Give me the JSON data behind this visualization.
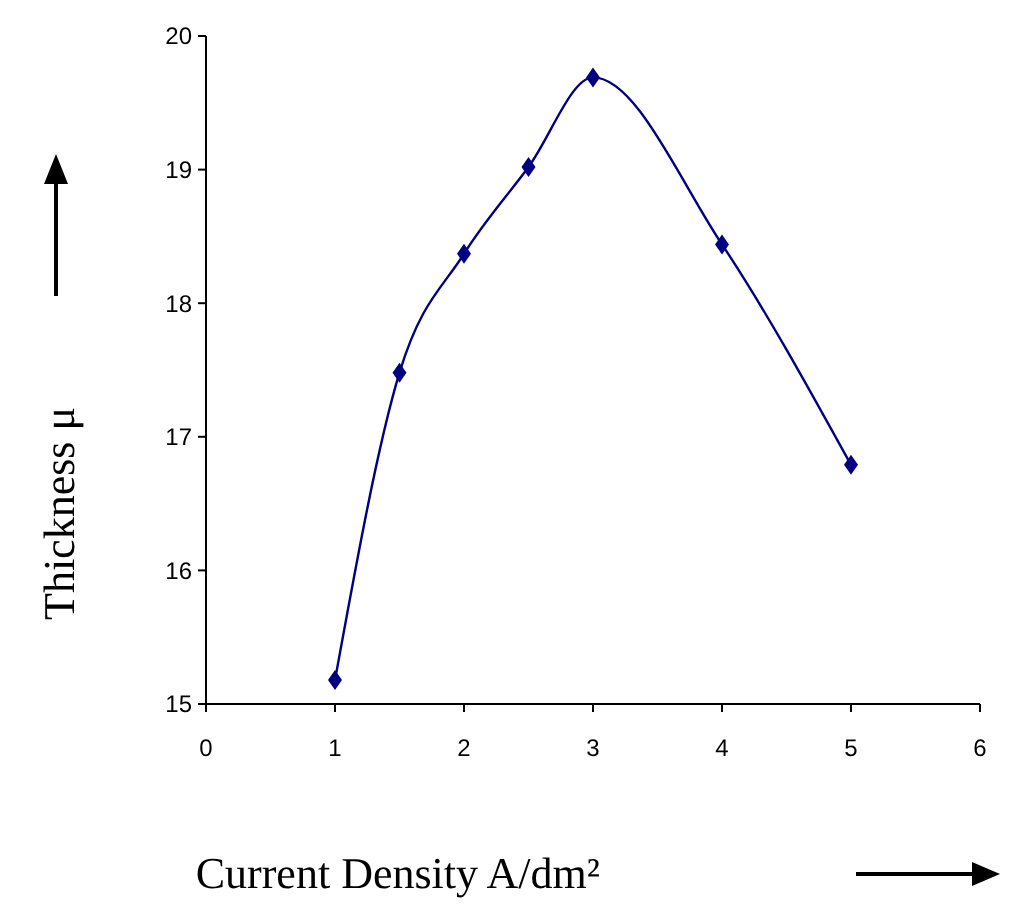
{
  "chart_data": {
    "type": "line",
    "xlabel": "Current Density A/dm²",
    "ylabel": "Thickness μ",
    "x": [
      1,
      1.5,
      2,
      2.5,
      3,
      4,
      5
    ],
    "series": [
      {
        "color": "#000080",
        "values": [
          15.18,
          17.48,
          18.37,
          19.02,
          19.69,
          18.44,
          16.79
        ]
      }
    ],
    "xlim": [
      0,
      6
    ],
    "xticks": [
      0,
      1,
      2,
      3,
      4,
      5,
      6
    ],
    "ylim": [
      15,
      20
    ],
    "yticks": [
      15,
      16,
      17,
      18,
      19,
      20
    ],
    "marker": "diamond",
    "line_style": "solid"
  }
}
